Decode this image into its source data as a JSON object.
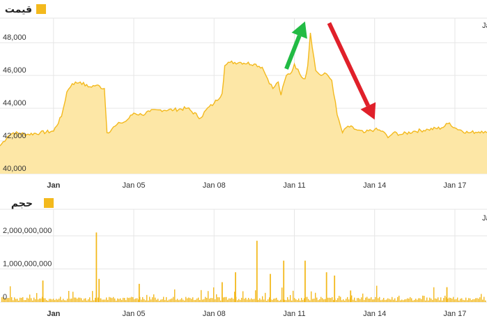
{
  "colors": {
    "series": "#f3b91d",
    "area_fill": "#fde7a6",
    "grid": "#e6e6e6",
    "arrow_up": "#22bb44",
    "arrow_down": "#e0202a"
  },
  "chart_data": [
    {
      "type": "area",
      "legend": "قیمت",
      "legend_position": "top-right",
      "grid": true,
      "ylim": [
        40000,
        49500
      ],
      "y_ticks": [
        40000,
        42000,
        44000,
        46000,
        48000
      ],
      "y_tick_labels": [
        "40,000",
        "42,000",
        "44,000",
        "46,000",
        "48,000"
      ],
      "xlim": [
        0,
        18.2
      ],
      "x_ticks": [
        2,
        5,
        8,
        11,
        14,
        17
      ],
      "x_tick_labels": [
        "Jan",
        "Jan 05",
        "Jan 08",
        "Jan 11",
        "Jan 14",
        "Jan 17"
      ],
      "cut_label": "Ja",
      "series": [
        {
          "x": [
            0.0,
            0.3,
            0.5,
            1.0,
            1.5,
            2.0,
            2.3,
            2.5,
            2.7,
            3.0,
            3.3,
            3.6,
            3.9,
            4.0,
            4.3,
            4.5,
            4.7,
            5.0,
            5.3,
            5.6,
            6.0,
            6.5,
            7.0,
            7.5,
            7.7,
            8.0,
            8.3,
            8.4,
            8.6,
            9.0,
            9.5,
            9.8,
            10.0,
            10.2,
            10.4,
            10.5,
            10.7,
            10.9,
            11.0,
            11.2,
            11.4,
            11.5,
            11.6,
            11.8,
            12.0,
            12.2,
            12.4,
            12.6,
            12.8,
            13.0,
            13.3,
            13.6,
            14.0,
            14.3,
            14.5,
            14.7,
            15.0,
            15.5,
            16.0,
            16.5,
            16.8,
            17.0,
            17.5,
            18.0,
            18.2
          ],
          "values": [
            41700,
            42300,
            42500,
            42400,
            42500,
            42600,
            43500,
            45000,
            45500,
            45600,
            45300,
            45400,
            45200,
            42500,
            42900,
            43100,
            43200,
            43700,
            43600,
            43800,
            43900,
            43900,
            44000,
            43400,
            43900,
            44300,
            44900,
            46600,
            46800,
            46800,
            46700,
            46500,
            45800,
            45200,
            45600,
            44800,
            46000,
            46200,
            46700,
            46100,
            45800,
            46600,
            48600,
            46300,
            46000,
            46100,
            45700,
            43600,
            42500,
            42900,
            42700,
            42500,
            42700,
            42600,
            42200,
            42500,
            42400,
            42600,
            42700,
            42800,
            43100,
            42800,
            42500,
            42600,
            42500
          ]
        }
      ],
      "annotations": [
        {
          "type": "arrow",
          "color": "green",
          "direction": "up",
          "from": [
            10.7,
            46400
          ],
          "to": [
            11.4,
            49300
          ]
        },
        {
          "type": "arrow",
          "color": "red",
          "direction": "down",
          "from": [
            12.3,
            49200
          ],
          "to": [
            14.0,
            43300
          ]
        }
      ]
    },
    {
      "type": "bar",
      "legend": "حجم",
      "legend_position": "top-right",
      "grid": true,
      "ylim": [
        0,
        2800000000
      ],
      "y_ticks": [
        0,
        1000000000,
        2000000000
      ],
      "y_tick_labels": [
        "0",
        "1,000,000,000",
        "2,000,000,000"
      ],
      "xlim": [
        0,
        18.2
      ],
      "x_ticks": [
        2,
        5,
        8,
        11,
        14,
        17
      ],
      "x_tick_labels": [
        "Jan",
        "Jan 05",
        "Jan 08",
        "Jan 11",
        "Jan 14",
        "Jan 17"
      ],
      "cut_label": "Ja",
      "peaks": [
        {
          "x": 1.6,
          "value": 650000000
        },
        {
          "x": 3.6,
          "value": 2100000000
        },
        {
          "x": 3.7,
          "value": 700000000
        },
        {
          "x": 5.2,
          "value": 550000000
        },
        {
          "x": 8.3,
          "value": 600000000
        },
        {
          "x": 8.8,
          "value": 900000000
        },
        {
          "x": 9.6,
          "value": 1850000000
        },
        {
          "x": 10.1,
          "value": 850000000
        },
        {
          "x": 10.6,
          "value": 1250000000
        },
        {
          "x": 11.4,
          "value": 1250000000
        },
        {
          "x": 12.2,
          "value": 900000000
        },
        {
          "x": 12.5,
          "value": 800000000
        },
        {
          "x": 13.1,
          "value": 350000000
        },
        {
          "x": 16.7,
          "value": 450000000
        }
      ]
    }
  ]
}
